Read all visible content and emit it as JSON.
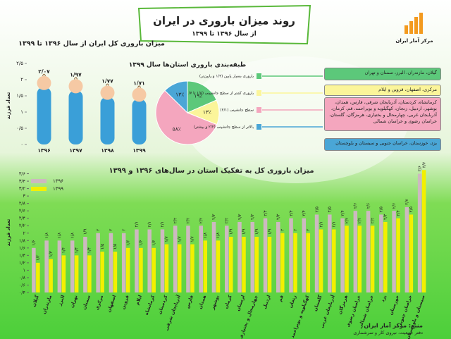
{
  "header": {
    "title": "روند میزان باروری در ایران",
    "subtitle": "از سال ۱۳۹۶ تا ۱۳۹۹"
  },
  "logo": "مرکز آمار ایران",
  "province_groups": [
    "گیلان، مازندران، البرز، سمنان و تهران",
    "مرکزی، اصفهان، قزوین و ایلام",
    "کرمانشاه، کردستان، آذربایجان شرقی، فارس، همدان، بوشهر، اردبیل، زنجان، کهگیلویه و بویراحمد، قم، کرمان، آذربایجان غربی، چهارمحال و بختیاری، هرمزگان، گلستان، خراسان رضوی و خراسان شمالی",
    "یزد، خوزستان، خراسان جنوبی و سیستان و بلوچستان"
  ],
  "source": {
    "line1": "منبع: مرکز آمار ایران",
    "line2": "دفتر جمعیت، نیروی کار و سرشماری"
  },
  "chart_data": [
    {
      "type": "baby",
      "title": "میزان باروری کل ایران از سال ۱۳۹۶ تا ۱۳۹۹",
      "y_label": "تعداد فرزند",
      "categories": [
        "۱۳۹۶",
        "۱۳۹۷",
        "۱۳۹۸",
        "۱۳۹۹"
      ],
      "values": [
        2.07,
        1.97,
        1.77,
        1.71
      ],
      "value_labels": [
        "۲/۰۷",
        "۱/۹۷",
        "۱/۷۷",
        "۱/۷۱"
      ],
      "color": "#3a9fd8",
      "ylim": [
        0,
        2.5
      ],
      "yticks": [
        {
          "value": 0,
          "label": "۰"
        },
        {
          "value": 0.5,
          "label": "۰/۵"
        },
        {
          "value": 1,
          "label": "۱"
        },
        {
          "value": 1.5,
          "label": "۱/۵"
        },
        {
          "value": 2,
          "label": "۲"
        },
        {
          "value": 2.5,
          "label": "۲/۵"
        }
      ]
    },
    {
      "type": "pie",
      "title": "طبقه‌بندی باروری استان‌ها سال ۱۳۹۹",
      "categories": [
        "باروری بسیار پایین (۱/۴ و پایین‌تر)",
        "باروری کمتر از سطح جانشینی (۱/۵ تا ۱/۷)",
        "سطح جانشینی (۲/۱)",
        "بالاتر از سطح جانشینی (۲/۲ و بیشتر)"
      ],
      "values": [
        19,
        13,
        58,
        13
      ],
      "value_labels": [
        "۱۹٪",
        "۱۳٪",
        "۵۸٪",
        "۱۳٪"
      ],
      "colors": [
        "#5cc87a",
        "#fbf59a",
        "#f4a6be",
        "#4aa6d6"
      ]
    },
    {
      "type": "bar",
      "title": "میزان باروری کل به تفکیک استان در سال‌های ۱۳۹۶ و ۱۳۹۹",
      "y_label": "تعداد فرزند",
      "categories": [
        "گیلان",
        "مازندران",
        "البرز",
        "تهران",
        "سمنان",
        "مرکزی",
        "اصفهان",
        "قزوین",
        "ایلام",
        "کرمانشاه",
        "کردستان",
        "آذربایجان شرقی",
        "فارس",
        "همدان",
        "بوشهر",
        "کرمان",
        "لرستان",
        "چهارمحال و بختیاری",
        "اردبیل",
        "قم",
        "زنجان",
        "کهگیلویه و بویراحمد",
        "گلستان",
        "آذربایجان غربی",
        "هرمزگان",
        "خراسان رضوی",
        "خراسان شمالی",
        "یزد",
        "خوزستان",
        "خراسان جنوبی",
        "سیستان و بلوچستان"
      ],
      "series": [
        {
          "name": "۱۳۹۶",
          "color": "#cdb9c0",
          "values": [
            1.6,
            1.8,
            1.8,
            1.8,
            1.9,
            2,
            2,
            2,
            2.1,
            2.1,
            2.1,
            2.2,
            2.2,
            2.2,
            2.3,
            2.2,
            2.3,
            2.3,
            2.4,
            2.3,
            2.4,
            2.4,
            2.5,
            2.5,
            2.4,
            2.6,
            2.6,
            2.5,
            2.6,
            2.7,
            3.6
          ],
          "value_labels": [
            "۱/۶",
            "۱/۸",
            "۱/۸",
            "۱/۸",
            "۱/۹",
            "۲",
            "۲",
            "۲",
            "۲/۱",
            "۲/۱",
            "۲/۱",
            "۲/۲",
            "۲/۲",
            "۲/۲",
            "۲/۳",
            "۲/۲",
            "۲/۳",
            "۲/۳",
            "۲/۴",
            "۲/۳",
            "۲/۴",
            "۲/۴",
            "۲/۵",
            "۲/۵",
            "۲/۴",
            "۲/۶",
            "۲/۶",
            "۲/۵",
            "۲/۶",
            "۲/۷",
            "۳/۶"
          ]
        },
        {
          "name": "۱۳۹۹",
          "color": "#f2f000",
          "values": [
            1.2,
            1.3,
            1.4,
            1.4,
            1.4,
            1.5,
            1.5,
            1.6,
            1.6,
            1.6,
            1.7,
            1.7,
            1.7,
            1.8,
            1.8,
            1.9,
            1.9,
            1.9,
            1.9,
            2,
            2,
            2,
            2.1,
            2.1,
            2.2,
            2.2,
            2.2,
            2.3,
            2.4,
            2.5,
            3.7
          ],
          "value_labels": [
            "۱/۲",
            "۱/۳",
            "۱/۴",
            "۱/۴",
            "۱/۴",
            "۱/۵",
            "۱/۵",
            "۱/۶",
            "۱/۶",
            "۱/۶",
            "۱/۷",
            "۱/۷",
            "۱/۷",
            "۱/۸",
            "۱/۸",
            "۱/۹",
            "۱/۹",
            "۱/۹",
            "۱/۹",
            "۲",
            "۲",
            "۲",
            "۲/۱",
            "۲/۱",
            "۲/۲",
            "۲/۲",
            "۲/۲",
            "۲/۳",
            "۲/۴",
            "۲/۵",
            "۳/۷"
          ]
        }
      ],
      "ylim": [
        0.4,
        3.8
      ],
      "yticks": [
        {
          "value": 0.4,
          "label": "۰/۴"
        },
        {
          "value": 0.6,
          "label": "۰/۶"
        },
        {
          "value": 0.8,
          "label": "۰/۸"
        },
        {
          "value": 1,
          "label": "۱"
        },
        {
          "value": 1.2,
          "label": "۱/۲"
        },
        {
          "value": 1.4,
          "label": "۱/۴"
        },
        {
          "value": 1.6,
          "label": "۱/۶"
        },
        {
          "value": 1.8,
          "label": "۱/۸"
        },
        {
          "value": 2,
          "label": "۲"
        },
        {
          "value": 2.2,
          "label": "۲/۲"
        },
        {
          "value": 2.4,
          "label": "۲/۴"
        },
        {
          "value": 2.6,
          "label": "۲/۶"
        },
        {
          "value": 2.8,
          "label": "۲/۸"
        },
        {
          "value": 3,
          "label": "۳"
        },
        {
          "value": 3.2,
          "label": "۳/۲"
        },
        {
          "value": 3.4,
          "label": "۳/۴"
        },
        {
          "value": 3.6,
          "label": "۳/۶"
        }
      ]
    }
  ]
}
